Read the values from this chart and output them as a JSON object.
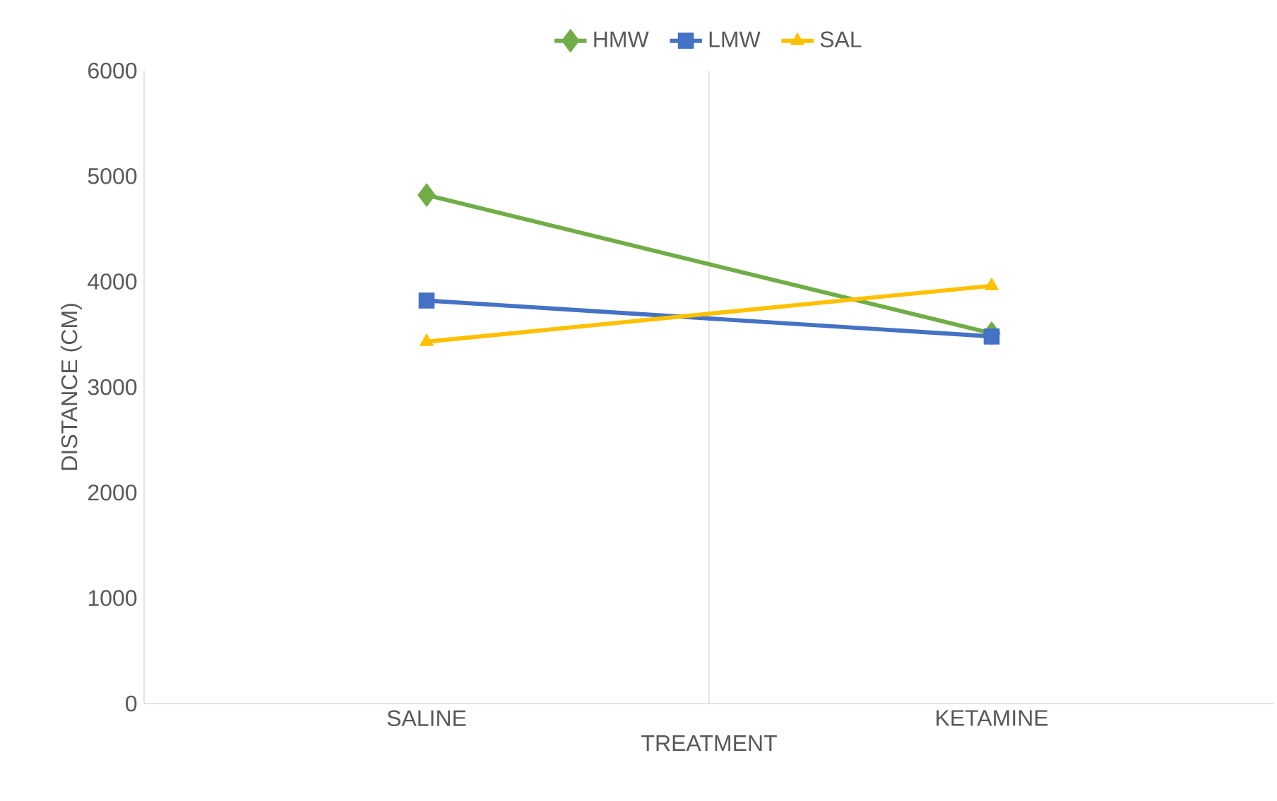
{
  "chart_data": {
    "type": "line",
    "xlabel": "TREATMENT",
    "ylabel": "DISTANCE (CM)",
    "categories": [
      "SALINE",
      "KETAMINE"
    ],
    "series": [
      {
        "name": "HMW",
        "color": "#70ad47",
        "marker": "diamond",
        "values": [
          4820,
          3510
        ]
      },
      {
        "name": "LMW",
        "color": "#4472c4",
        "marker": "square",
        "values": [
          3820,
          3480
        ]
      },
      {
        "name": "SAL",
        "color": "#ffc000",
        "marker": "triangle",
        "values": [
          3430,
          3960
        ]
      }
    ],
    "ylim": [
      0,
      6000
    ],
    "yticks": [
      0,
      1000,
      2000,
      3000,
      4000,
      5000,
      6000
    ],
    "grid": "x",
    "legend": "top",
    "line_style": "solid"
  }
}
